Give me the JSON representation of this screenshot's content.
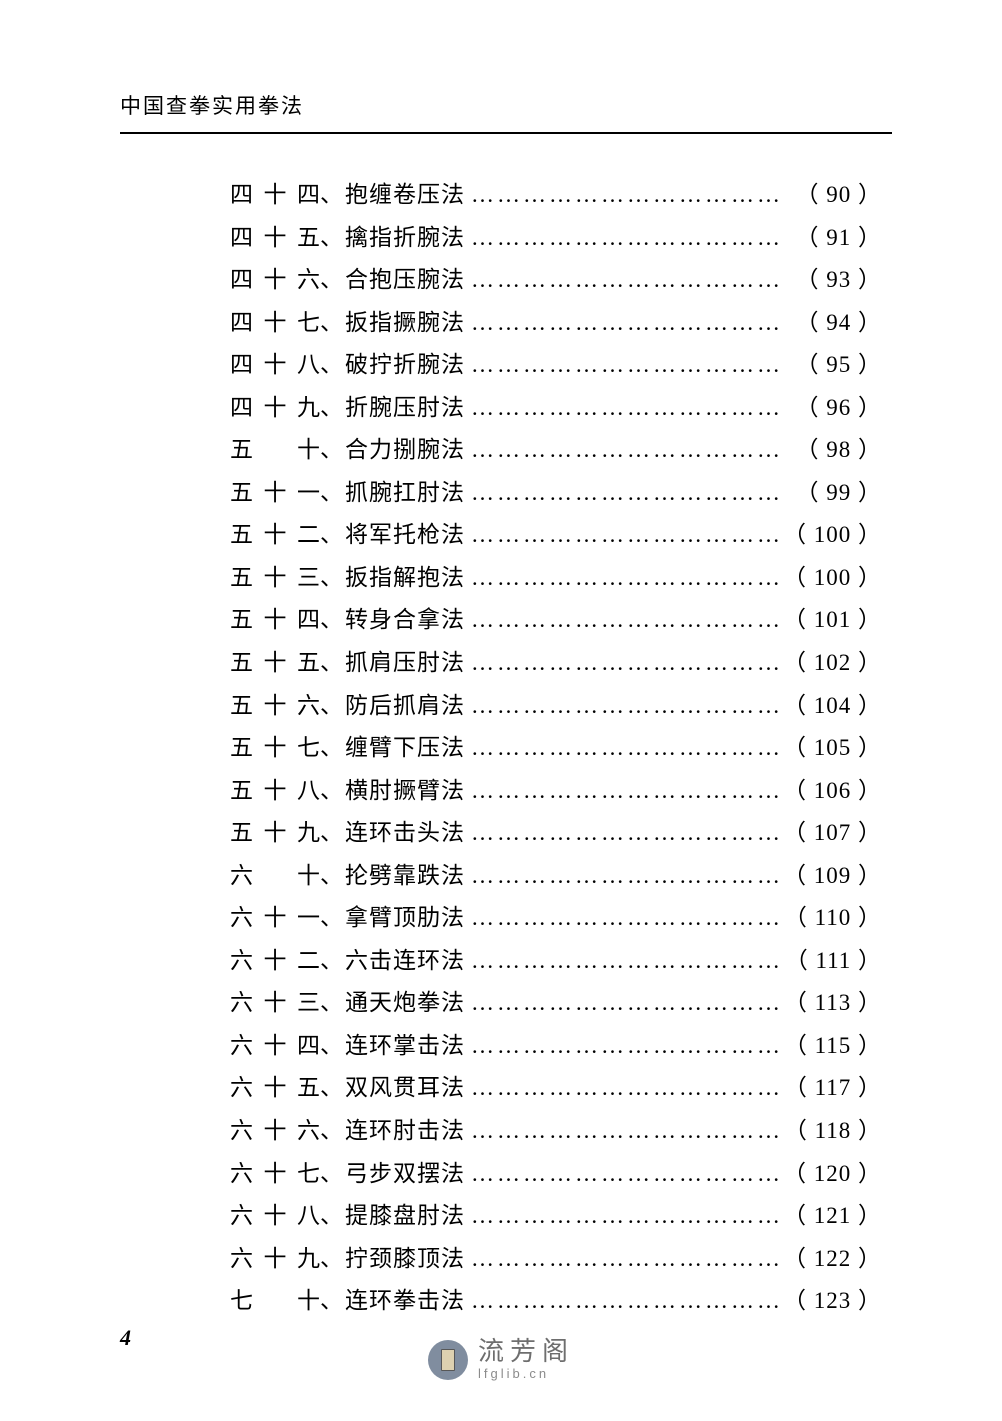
{
  "header": {
    "title": "中国查拳实用拳法"
  },
  "toc": {
    "entries": [
      {
        "num": "四十四",
        "title": "抱缠卷压法",
        "page": "（ 90 ）"
      },
      {
        "num": "四十五",
        "title": "擒指折腕法",
        "page": "（ 91 ）"
      },
      {
        "num": "四十六",
        "title": "合抱压腕法",
        "page": "（ 93 ）"
      },
      {
        "num": "四十七",
        "title": "扳指撅腕法",
        "page": "（ 94 ）"
      },
      {
        "num": "四十八",
        "title": "破拧折腕法",
        "page": "（ 95 ）"
      },
      {
        "num": "四十九",
        "title": "折腕压肘法",
        "page": "（ 96 ）"
      },
      {
        "num": "五　十",
        "title": "合力捌腕法",
        "page": "（ 98 ）"
      },
      {
        "num": "五十一",
        "title": "抓腕扛肘法",
        "page": "（ 99 ）"
      },
      {
        "num": "五十二",
        "title": "将军托枪法",
        "page": "（ 100 ）"
      },
      {
        "num": "五十三",
        "title": "扳指解抱法",
        "page": "（ 100 ）"
      },
      {
        "num": "五十四",
        "title": "转身合拿法",
        "page": "（ 101 ）"
      },
      {
        "num": "五十五",
        "title": "抓肩压肘法",
        "page": "（ 102 ）"
      },
      {
        "num": "五十六",
        "title": "防后抓肩法",
        "page": "（ 104 ）"
      },
      {
        "num": "五十七",
        "title": "缠臂下压法",
        "page": "（ 105 ）"
      },
      {
        "num": "五十八",
        "title": "横肘撅臂法",
        "page": "（ 106 ）"
      },
      {
        "num": "五十九",
        "title": "连环击头法",
        "page": "（ 107 ）"
      },
      {
        "num": "六　十",
        "title": "抡劈靠跌法",
        "page": "（ 109 ）"
      },
      {
        "num": "六十一",
        "title": "拿臂顶肋法",
        "page": "（ 110 ）"
      },
      {
        "num": "六十二",
        "title": "六击连环法",
        "page": "（ 111 ）"
      },
      {
        "num": "六十三",
        "title": "通天炮拳法",
        "page": "（ 113 ）"
      },
      {
        "num": "六十四",
        "title": "连环掌击法",
        "page": "（ 115 ）"
      },
      {
        "num": "六十五",
        "title": "双风贯耳法",
        "page": "（ 117 ）"
      },
      {
        "num": "六十六",
        "title": "连环肘击法",
        "page": "（ 118 ）"
      },
      {
        "num": "六十七",
        "title": "弓步双摆法",
        "page": "（ 120 ）"
      },
      {
        "num": "六十八",
        "title": "提膝盘肘法",
        "page": "（ 121 ）"
      },
      {
        "num": "六十九",
        "title": "拧颈膝顶法",
        "page": "（ 122 ）"
      },
      {
        "num": "七　十",
        "title": "连环拳击法",
        "page": "（ 123 ）"
      }
    ]
  },
  "footer": {
    "pagenum": "4"
  },
  "watermark": {
    "cn": "流芳阁",
    "en": "lfglib.cn"
  }
}
